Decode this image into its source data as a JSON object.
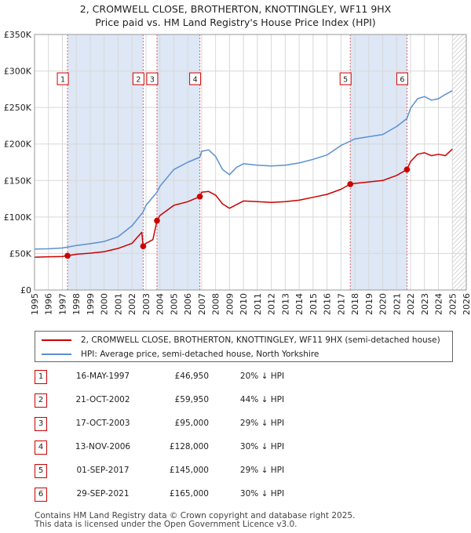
{
  "title_line1": "2, CROMWELL CLOSE, BROTHERTON, KNOTTINGLEY, WF11 9HX",
  "title_line2": "Price paid vs. HM Land Registry's House Price Index (HPI)",
  "legend": {
    "property_label": "2, CROMWELL CLOSE, BROTHERTON, KNOTTINGLEY, WF11 9HX (semi-detached house)",
    "hpi_label": "HPI: Average price, semi-detached house, North Yorkshire"
  },
  "colors": {
    "property": "#cc0000",
    "hpi": "#5b8fd1",
    "shade": "#dde7f5",
    "grid": "#d8d8d8"
  },
  "transactions": [
    {
      "num": "1",
      "date": "16-MAY-1997",
      "price": "£46,950",
      "hpi_diff": "20% ↓ HPI",
      "t": 1997.37,
      "v": 46950
    },
    {
      "num": "2",
      "date": "21-OCT-2002",
      "price": "£59,950",
      "hpi_diff": "44% ↓ HPI",
      "t": 2002.8,
      "v": 59950
    },
    {
      "num": "3",
      "date": "17-OCT-2003",
      "price": "£95,000",
      "hpi_diff": "29% ↓ HPI",
      "t": 2003.79,
      "v": 95000
    },
    {
      "num": "4",
      "date": "13-NOV-2006",
      "price": "£128,000",
      "hpi_diff": "30% ↓ HPI",
      "t": 2006.87,
      "v": 128000
    },
    {
      "num": "5",
      "date": "01-SEP-2017",
      "price": "£145,000",
      "hpi_diff": "29% ↓ HPI",
      "t": 2017.67,
      "v": 145000
    },
    {
      "num": "6",
      "date": "29-SEP-2021",
      "price": "£165,000",
      "hpi_diff": "30% ↓ HPI",
      "t": 2021.74,
      "v": 165000
    }
  ],
  "footer_line1": "Contains HM Land Registry data © Crown copyright and database right 2025.",
  "footer_line2": "This data is licensed under the Open Government Licence v3.0.",
  "chart_data": {
    "type": "line",
    "title": "2, CROMWELL CLOSE, BROTHERTON, KNOTTINGLEY, WF11 9HX — Price paid vs. HM Land Registry's House Price Index (HPI)",
    "xlabel": "",
    "ylabel": "",
    "xlim": [
      1995,
      2026
    ],
    "ylim": [
      0,
      350000
    ],
    "x_ticks": [
      "1995",
      "1996",
      "1997",
      "1998",
      "1999",
      "2000",
      "2001",
      "2002",
      "2003",
      "2004",
      "2005",
      "2006",
      "2007",
      "2008",
      "2009",
      "2010",
      "2011",
      "2012",
      "2013",
      "2014",
      "2015",
      "2016",
      "2017",
      "2018",
      "2019",
      "2020",
      "2021",
      "2022",
      "2023",
      "2024",
      "2025",
      "2026"
    ],
    "y_ticks": [
      {
        "value": 0,
        "label": "£0"
      },
      {
        "value": 50000,
        "label": "£50K"
      },
      {
        "value": 100000,
        "label": "£100K"
      },
      {
        "value": 150000,
        "label": "£150K"
      },
      {
        "value": 200000,
        "label": "£200K"
      },
      {
        "value": 250000,
        "label": "£250K"
      },
      {
        "value": 300000,
        "label": "£300K"
      },
      {
        "value": 350000,
        "label": "£350K"
      }
    ],
    "forecast_from": 2025.0,
    "shaded_periods": [
      [
        1997.37,
        2002.8
      ],
      [
        2003.79,
        2006.87
      ],
      [
        2017.67,
        2021.74
      ]
    ],
    "series": [
      {
        "name": "HPI: Average price, semi-detached house, North Yorkshire",
        "x": [
          1995,
          1996,
          1997,
          1997.37,
          1998,
          1999,
          2000,
          2001,
          2002,
          2002.8,
          2003,
          2003.79,
          2004,
          2005,
          2006,
          2006.87,
          2007,
          2007.5,
          2008,
          2008.5,
          2009,
          2009.5,
          2010,
          2011,
          2012,
          2013,
          2014,
          2015,
          2016,
          2017,
          2017.67,
          2018,
          2019,
          2020,
          2021,
          2021.74,
          2022,
          2022.5,
          2023,
          2023.5,
          2024,
          2024.5,
          2025.0
        ],
        "values": [
          56000,
          56500,
          57500,
          58700,
          61000,
          63500,
          66500,
          73000,
          88000,
          107000,
          116000,
          134000,
          142000,
          165000,
          175000,
          182000,
          190000,
          192000,
          183000,
          165000,
          158000,
          168000,
          173000,
          171000,
          170000,
          171000,
          174000,
          179000,
          185000,
          198000,
          204000,
          207000,
          210000,
          213000,
          224000,
          235000,
          249000,
          262000,
          265000,
          260000,
          262000,
          268000,
          273000
        ]
      },
      {
        "name": "2, CROMWELL CLOSE, BROTHERTON, KNOTTINGLEY, WF11 9HX (semi-detached house)",
        "x": [
          1995,
          1996,
          1997,
          1997.37,
          1998,
          1999,
          2000,
          2001,
          2002,
          2002.7,
          2002.8,
          2003,
          2003.5,
          2003.79,
          2004,
          2005,
          2006,
          2006.87,
          2007,
          2007.5,
          2008,
          2008.5,
          2009,
          2010,
          2011,
          2012,
          2013,
          2014,
          2015,
          2016,
          2017,
          2017.67,
          2018,
          2019,
          2020,
          2021,
          2021.74,
          2022,
          2022.5,
          2023,
          2023.5,
          2024,
          2024.5,
          2025.0
        ],
        "values": [
          45000,
          45500,
          46000,
          46950,
          49000,
          50500,
          52500,
          57000,
          64000,
          79000,
          59950,
          64000,
          69000,
          95000,
          102000,
          116000,
          121000,
          128000,
          134000,
          135000,
          130000,
          118000,
          112000,
          122000,
          121000,
          120000,
          121000,
          123000,
          127000,
          131000,
          138000,
          145000,
          146000,
          148000,
          150000,
          157000,
          165000,
          176000,
          186000,
          188000,
          184000,
          186000,
          184000,
          193000
        ]
      }
    ]
  }
}
